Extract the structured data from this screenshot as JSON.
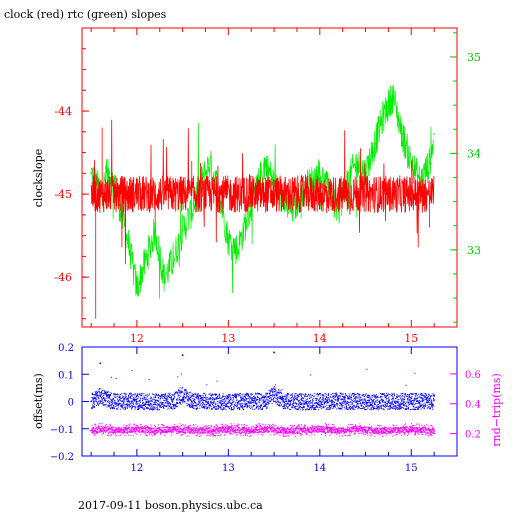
{
  "footer": "2017-09-11 boson.physics.ubc.ca",
  "colors": {
    "clock": "#ff0000",
    "rtc": "#00ee00",
    "frame_top": "#ff0000",
    "frame_bottom": "#0000ff",
    "offset": "#0000ff",
    "rnd_trip": "#ff00ff"
  },
  "chart_data": [
    {
      "type": "line",
      "title": "clock (red) rtc (green) slopes",
      "xlim": [
        11.4,
        15.5
      ],
      "x_ticks": [
        12,
        13,
        14,
        15
      ],
      "ylabel": "clockslope",
      "ylim": [
        -46.6,
        -43.0
      ],
      "y_ticks": [
        -46,
        -45,
        -44
      ],
      "y2lim": [
        32.2,
        35.3
      ],
      "y2_ticks": [
        33,
        34,
        35
      ],
      "series": [
        {
          "name": "clock",
          "axis": "left",
          "color": "#ff0000",
          "x": [
            11.5,
            11.55,
            11.62,
            11.7,
            11.8,
            11.9,
            12.0,
            12.1,
            12.2,
            12.3,
            12.4,
            12.5,
            12.6,
            12.7,
            12.8,
            12.9,
            13.0,
            13.1,
            13.2,
            13.3,
            13.4,
            13.5,
            13.6,
            13.7,
            13.8,
            13.9,
            14.0,
            14.1,
            14.2,
            14.3,
            14.4,
            14.5,
            14.6,
            14.7,
            14.8,
            14.9,
            15.0,
            15.1,
            15.2,
            15.25
          ],
          "y": [
            -45.0,
            -46.5,
            -44.2,
            -45.1,
            -44.9,
            -45.2,
            -44.8,
            -45.0,
            -45.3,
            -44.9,
            -45.1,
            -45.0,
            -44.6,
            -45.0,
            -45.1,
            -44.9,
            -45.0,
            -45.2,
            -44.8,
            -45.0,
            -45.1,
            -44.9,
            -45.0,
            -45.2,
            -44.9,
            -45.0,
            -45.1,
            -44.9,
            -45.0,
            -45.2,
            -44.9,
            -45.1,
            -45.0,
            -44.8,
            -45.1,
            -45.0,
            -44.9,
            -45.1,
            -45.4,
            -45.0
          ]
        },
        {
          "name": "rtc",
          "axis": "right",
          "color": "#00ee00",
          "x": [
            11.5,
            11.6,
            11.7,
            11.8,
            11.9,
            12.0,
            12.1,
            12.2,
            12.3,
            12.4,
            12.5,
            12.6,
            12.7,
            12.8,
            12.9,
            13.0,
            13.1,
            13.2,
            13.3,
            13.4,
            13.5,
            13.6,
            13.7,
            13.8,
            13.9,
            14.0,
            14.1,
            14.2,
            14.3,
            14.4,
            14.5,
            14.6,
            14.7,
            14.8,
            14.9,
            15.0,
            15.1,
            15.2,
            15.25
          ],
          "y": [
            33.8,
            33.6,
            33.8,
            33.5,
            33.1,
            32.6,
            32.9,
            33.2,
            32.7,
            32.9,
            33.2,
            33.4,
            33.7,
            33.9,
            33.6,
            33.1,
            33.0,
            33.3,
            33.6,
            33.9,
            33.7,
            33.5,
            33.4,
            33.6,
            33.7,
            33.8,
            33.6,
            33.4,
            33.7,
            33.9,
            33.8,
            34.1,
            34.4,
            34.6,
            34.2,
            33.9,
            33.7,
            33.9,
            34.2
          ]
        }
      ]
    },
    {
      "type": "scatter",
      "xlim": [
        11.4,
        15.5
      ],
      "x_ticks": [
        12,
        13,
        14,
        15
      ],
      "ylabel": "offset(ms)",
      "ylim": [
        -0.2,
        0.2
      ],
      "y_ticks": [
        -0.2,
        -0.1,
        0,
        0.1,
        0.2
      ],
      "y_tick_labels": [
        "−0.2",
        "−0.1",
        "0",
        "0.1",
        "0.2"
      ],
      "y2label": "rnd−trip(ms)",
      "y2lim": [
        0.05,
        0.78
      ],
      "y2_ticks": [
        0.2,
        0.4,
        0.6
      ],
      "y2_tick_labels": [
        "0.2",
        "0.4",
        "0.6"
      ],
      "series": [
        {
          "name": "offset",
          "axis": "left",
          "color": "#0000ff",
          "x": [
            11.5,
            11.6,
            11.7,
            11.8,
            11.9,
            12.0,
            12.2,
            12.4,
            12.5,
            12.6,
            12.8,
            13.0,
            13.2,
            13.4,
            13.5,
            13.6,
            13.8,
            14.0,
            14.2,
            14.4,
            14.6,
            14.8,
            15.0,
            15.2
          ],
          "y": [
            0.0,
            0.14,
            0.02,
            -0.01,
            0.01,
            0.0,
            -0.01,
            0.01,
            0.17,
            0.0,
            0.01,
            -0.02,
            0.01,
            0.0,
            0.18,
            0.01,
            -0.01,
            0.0,
            0.01,
            0.0,
            -0.01,
            0.01,
            0.0,
            0.01
          ],
          "spread": 0.03
        },
        {
          "name": "rnd-trip",
          "axis": "right",
          "color": "#ff00ff",
          "x": [
            11.5,
            11.6,
            11.8,
            12.0,
            12.2,
            12.4,
            12.6,
            12.8,
            13.0,
            13.2,
            13.4,
            13.6,
            13.8,
            14.0,
            14.2,
            14.4,
            14.6,
            14.8,
            15.0,
            15.2
          ],
          "y": [
            0.22,
            0.23,
            0.22,
            0.23,
            0.22,
            0.23,
            0.22,
            0.22,
            0.23,
            0.22,
            0.23,
            0.22,
            0.22,
            0.23,
            0.22,
            0.23,
            0.22,
            0.22,
            0.23,
            0.22
          ],
          "spread": 0.04
        }
      ]
    }
  ]
}
